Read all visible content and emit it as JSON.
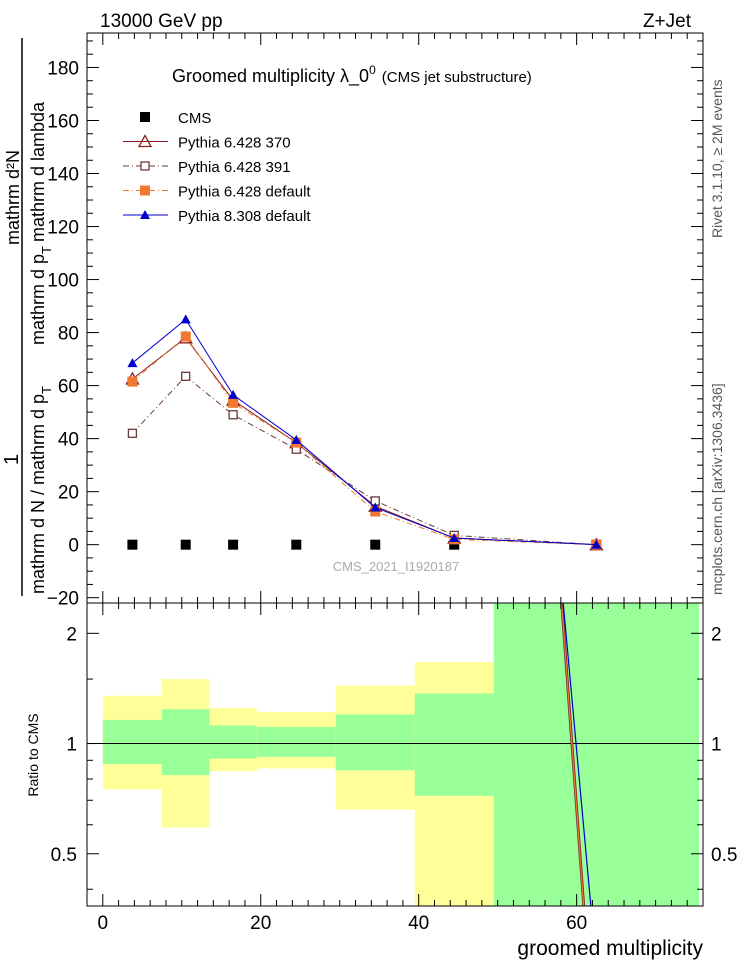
{
  "header": {
    "left": "13000 GeV pp",
    "right": "Z+Jet"
  },
  "side_labels": {
    "rivet": "Rivet 3.1.10, ≥ 2M events",
    "site": "mcplots.cern.ch [arXiv:1306.3436]"
  },
  "chart_data": [
    {
      "type": "line",
      "title": "Groomed multiplicity  λ_0⁰ (CMS jet substructure)",
      "title_main": "Groomed multiplicity  λ_0",
      "title_sup": "0",
      "title_small": "(CMS jet substructure)",
      "ylabel": "1 / mathrm d N / mathrm d p_T mathrm d²N / mathrm d p_T mathrm d lambda",
      "ylabel_parts": {
        "numerator": "1",
        "denominator": "mathrm d N / mathrm d p",
        "denominator_sub": "T",
        "rhs_numerator": "mathrm d²N",
        "rhs_denominator": "mathrm d p",
        "rhs_denominator_sub": "T",
        "rhs_denominator_end": "mathrm d lambda"
      },
      "watermark": "CMS_2021_I1920187",
      "xlim": [
        -2,
        76
      ],
      "ylim": [
        -22,
        193
      ],
      "yticks": [
        -20,
        0,
        20,
        40,
        60,
        80,
        100,
        120,
        140,
        160,
        180
      ],
      "legend_position": "top-left",
      "series": [
        {
          "name": "CMS",
          "color": "#000000",
          "marker": "filled-square",
          "line": "none",
          "x": [
            3.75,
            10.5,
            16.5,
            24.5,
            34.5,
            44.5,
            62.5
          ],
          "y": [
            0,
            0,
            0,
            0,
            0,
            0,
            0
          ]
        },
        {
          "name": "Pythia 6.428 370",
          "color": "#8b1a1a",
          "marker": "open-triangle",
          "line": "solid",
          "x": [
            3.75,
            10.5,
            16.5,
            24.5,
            34.5,
            44.5,
            62.5
          ],
          "y": [
            62.5,
            78,
            54.5,
            38.5,
            14.5,
            2.5,
            0
          ]
        },
        {
          "name": "Pythia 6.428 391",
          "color": "#6b3a3a",
          "marker": "open-square",
          "line": "dashdot",
          "x": [
            3.75,
            10.5,
            16.5,
            24.5,
            34.5,
            44.5,
            62.5
          ],
          "y": [
            42,
            63.5,
            49,
            36,
            16.5,
            3.5,
            0
          ]
        },
        {
          "name": "Pythia 6.428 default",
          "color": "#f07830",
          "marker": "filled-square",
          "line": "dashdot",
          "x": [
            3.75,
            10.5,
            16.5,
            24.5,
            34.5,
            44.5,
            62.5
          ],
          "y": [
            61.5,
            78.5,
            53.5,
            38.5,
            12.5,
            2,
            0
          ]
        },
        {
          "name": "Pythia 8.308 default",
          "color": "#0000cc",
          "marker": "filled-triangle",
          "line": "solid",
          "x": [
            3.75,
            10.5,
            16.5,
            24.5,
            34.5,
            44.5,
            62.5
          ],
          "y": [
            68.5,
            85,
            56.5,
            39.5,
            14,
            2.5,
            0
          ]
        }
      ]
    },
    {
      "type": "area",
      "ylabel": "Ratio to CMS",
      "xlabel": "groomed multiplicity",
      "xlim": [
        -2,
        76
      ],
      "ylim": [
        0.36,
        2.42
      ],
      "ylog": true,
      "yticks": [
        0.5,
        1,
        2
      ],
      "xticks": [
        0,
        20,
        40,
        60
      ],
      "reference": 1,
      "bands": [
        {
          "x0": 0,
          "x1": 7.5,
          "inner": [
            0.88,
            1.16
          ],
          "outer": [
            0.75,
            1.35
          ]
        },
        {
          "x0": 7.5,
          "x1": 13.5,
          "inner": [
            0.82,
            1.24
          ],
          "outer": [
            0.59,
            1.5
          ]
        },
        {
          "x0": 13.5,
          "x1": 19.5,
          "inner": [
            0.91,
            1.12
          ],
          "outer": [
            0.84,
            1.25
          ]
        },
        {
          "x0": 19.5,
          "x1": 29.5,
          "inner": [
            0.92,
            1.11
          ],
          "outer": [
            0.855,
            1.22
          ]
        },
        {
          "x0": 29.5,
          "x1": 39.5,
          "inner": [
            0.845,
            1.2
          ],
          "outer": [
            0.66,
            1.44
          ]
        },
        {
          "x0": 39.5,
          "x1": 49.5,
          "inner": [
            0.72,
            1.37
          ],
          "outer": [
            0.36,
            1.67
          ]
        },
        {
          "x0": 49.5,
          "x1": 75.5,
          "inner": [
            0.36,
            2.42
          ],
          "outer": [
            0.36,
            2.42
          ]
        }
      ],
      "ratio_lines": [
        {
          "name": "Pythia 6.428 370",
          "color": "#8b1a1a",
          "x": [
            58.2,
            61.0
          ],
          "y": [
            2.42,
            0.36
          ]
        },
        {
          "name": "Pythia 6.428 391",
          "color": "#6b3a3a",
          "x": [
            58.0,
            60.8
          ],
          "y": [
            2.42,
            0.36
          ]
        },
        {
          "name": "Pythia 6.428 default",
          "color": "#f07830",
          "x": [
            58.1,
            60.9
          ],
          "y": [
            2.42,
            0.36
          ]
        },
        {
          "name": "Pythia 8.308 default",
          "color": "#0000cc",
          "x": [
            58.3,
            61.8
          ],
          "y": [
            2.42,
            0.36
          ]
        }
      ]
    }
  ],
  "colors": {
    "band_inner": "#99ff99",
    "band_outer": "#ffff99"
  }
}
